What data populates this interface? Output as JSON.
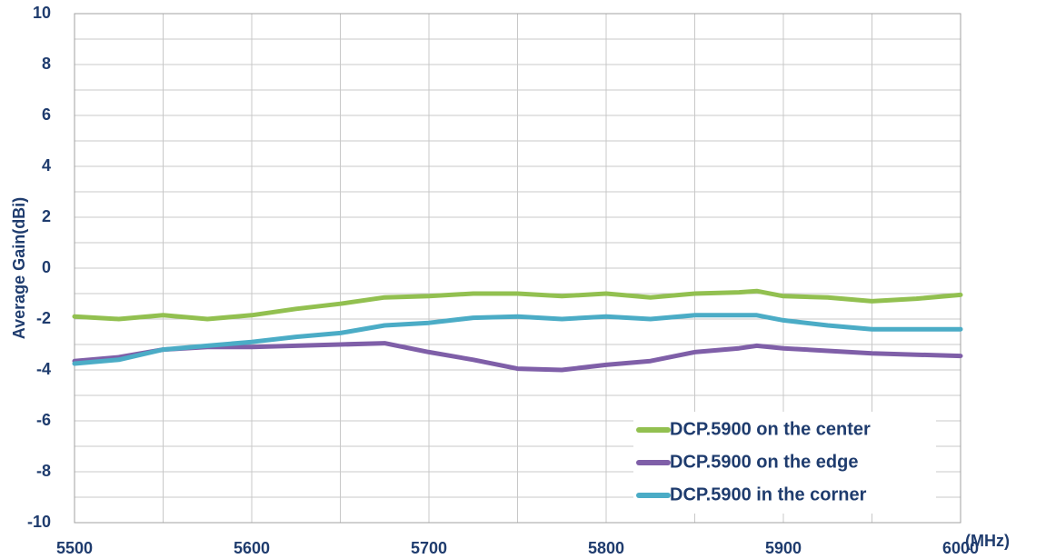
{
  "chart_data": {
    "type": "line",
    "y_label": "Average Gain(dBi)",
    "x_unit": "(MHz)",
    "x": [
      5500,
      5525,
      5550,
      5575,
      5600,
      5625,
      5650,
      5675,
      5700,
      5725,
      5750,
      5775,
      5800,
      5825,
      5850,
      5875,
      5885,
      5900,
      5925,
      5950,
      5975,
      6000
    ],
    "series": [
      {
        "name": "DCP.5900 on the center",
        "color": "#92c050",
        "values": [
          -1.9,
          -2.0,
          -1.85,
          -2.0,
          -1.85,
          -1.6,
          -1.4,
          -1.15,
          -1.1,
          -1.0,
          -1.0,
          -1.1,
          -1.0,
          -1.15,
          -1.0,
          -0.95,
          -0.9,
          -1.1,
          -1.15,
          -1.3,
          -1.2,
          -1.05
        ]
      },
      {
        "name": "DCP.5900 on the edge",
        "color": "#7f5fa8",
        "values": [
          -3.65,
          -3.5,
          -3.2,
          -3.1,
          -3.1,
          -3.05,
          -3.0,
          -2.95,
          -3.3,
          -3.6,
          -3.95,
          -4.0,
          -3.8,
          -3.65,
          -3.3,
          -3.15,
          -3.05,
          -3.15,
          -3.25,
          -3.35,
          -3.4,
          -3.45
        ]
      },
      {
        "name": "DCP.5900 in the corner",
        "color": "#4bacc6",
        "values": [
          -3.75,
          -3.6,
          -3.2,
          -3.05,
          -2.9,
          -2.7,
          -2.55,
          -2.25,
          -2.15,
          -1.95,
          -1.9,
          -2.0,
          -1.9,
          -2.0,
          -1.85,
          -1.85,
          -1.85,
          -2.05,
          -2.25,
          -2.4,
          -2.4,
          -2.4
        ]
      }
    ],
    "xlim": [
      5500,
      6000
    ],
    "xticks": [
      5500,
      5600,
      5700,
      5800,
      5900,
      6000
    ],
    "xminor_ticks": [
      5550,
      5650,
      5750,
      5850,
      5950
    ],
    "ylim": [
      -10,
      10
    ],
    "yticks": [
      -10,
      -8,
      -6,
      -4,
      -2,
      0,
      2,
      4,
      6,
      8,
      10
    ],
    "yminor_ticks": [
      -9,
      -7,
      -5,
      -3,
      -1,
      1,
      3,
      5,
      7,
      9
    ],
    "grid": true,
    "legend": "lower right"
  }
}
